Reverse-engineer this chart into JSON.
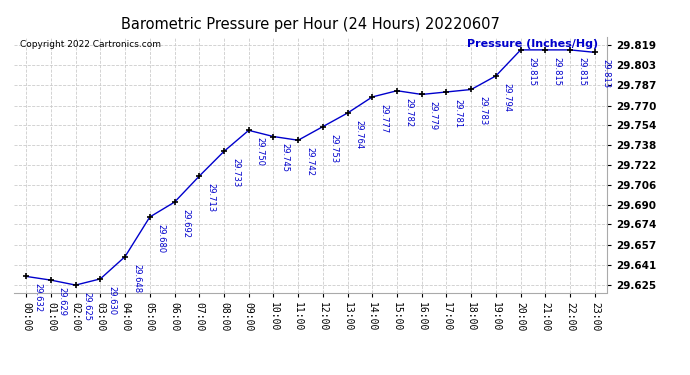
{
  "title": "Barometric Pressure per Hour (24 Hours) 20220607",
  "ylabel": "Pressure (Inches/Hg)",
  "copyright": "Copyright 2022 Cartronics.com",
  "hours": [
    "00:00",
    "01:00",
    "02:00",
    "03:00",
    "04:00",
    "05:00",
    "06:00",
    "07:00",
    "08:00",
    "09:00",
    "10:00",
    "11:00",
    "12:00",
    "13:00",
    "14:00",
    "15:00",
    "16:00",
    "17:00",
    "18:00",
    "19:00",
    "20:00",
    "21:00",
    "22:00",
    "23:00"
  ],
  "values": [
    29.632,
    29.629,
    29.625,
    29.63,
    29.648,
    29.68,
    29.692,
    29.713,
    29.733,
    29.75,
    29.745,
    29.742,
    29.753,
    29.764,
    29.777,
    29.782,
    29.779,
    29.781,
    29.783,
    29.794,
    29.815,
    29.815,
    29.815,
    29.813
  ],
  "line_color": "#0000cc",
  "marker_color": "#000000",
  "bg_color": "#ffffff",
  "grid_color": "#cccccc",
  "title_color": "#000000",
  "label_color": "#0000cc",
  "copyright_color": "#000000",
  "ylabel_color": "#0000cc",
  "ytick_color": "#000000",
  "xtick_color": "#000000",
  "ylim_min": 29.619,
  "ylim_max": 29.825,
  "ytick_values": [
    29.625,
    29.641,
    29.657,
    29.674,
    29.69,
    29.706,
    29.722,
    29.738,
    29.754,
    29.77,
    29.787,
    29.803,
    29.819
  ]
}
